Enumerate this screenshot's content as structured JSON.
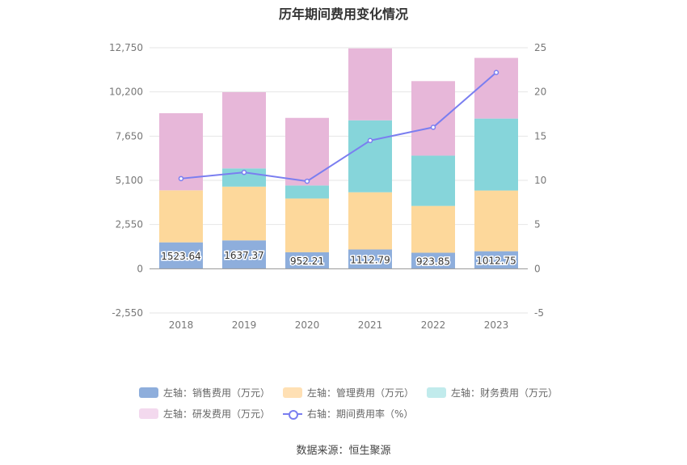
{
  "chart_data": {
    "type": "bar",
    "title": "历年期间费用变化情况",
    "categories": [
      "2018",
      "2019",
      "2020",
      "2021",
      "2022",
      "2023"
    ],
    "left_axis": {
      "ticks": [
        "-2,550",
        "0",
        "2,550",
        "5,100",
        "7,650",
        "10,200",
        "12,750"
      ],
      "ylim": [
        -2550,
        12750
      ]
    },
    "right_axis": {
      "ticks": [
        "-5",
        "0",
        "5",
        "10",
        "15",
        "20",
        "25"
      ],
      "ylim": [
        -5,
        25
      ]
    },
    "series": [
      {
        "name": "左轴：销售费用（万元）",
        "color": "#8eaedc",
        "values": [
          1523.64,
          1637.37,
          952.21,
          1112.79,
          923.85,
          1012.75
        ]
      },
      {
        "name": "左轴：管理费用（万元）",
        "color": "#fdd89b",
        "values": [
          3000,
          3100,
          3100,
          3300,
          2700,
          3500
        ]
      },
      {
        "name": "左轴：财务费用（万元）",
        "color": "#86d5da",
        "values": [
          0,
          1050,
          750,
          4150,
          2900,
          4150
        ]
      },
      {
        "name": "左轴：研发费用（万元）",
        "color": "#e7b7d9",
        "values": [
          4450,
          4400,
          3900,
          4150,
          4300,
          3500
        ]
      }
    ],
    "line": {
      "name": "右轴：期间费用率（%）",
      "color": "#7a7ef0",
      "values": [
        10.2,
        10.9,
        9.9,
        14.5,
        16.0,
        22.2
      ]
    },
    "bar_labels": [
      "1523.64",
      "1637.37",
      "952.21",
      "1112.79",
      "923.85",
      "1012.75"
    ]
  },
  "legend": {
    "items": [
      {
        "label": "左轴：销售费用（万元）",
        "color": "#8eaedc"
      },
      {
        "label": "左轴：管理费用（万元）",
        "color": "#ffe0b4"
      },
      {
        "label": "左轴：财务费用（万元）",
        "color": "#c1ebec"
      },
      {
        "label": "左轴：研发费用（万元）",
        "color": "#f3d9ee"
      },
      {
        "label": "右轴：期间费用率（%）",
        "color": "#7a7ef0"
      }
    ]
  },
  "source": "数据来源：恒生聚源"
}
